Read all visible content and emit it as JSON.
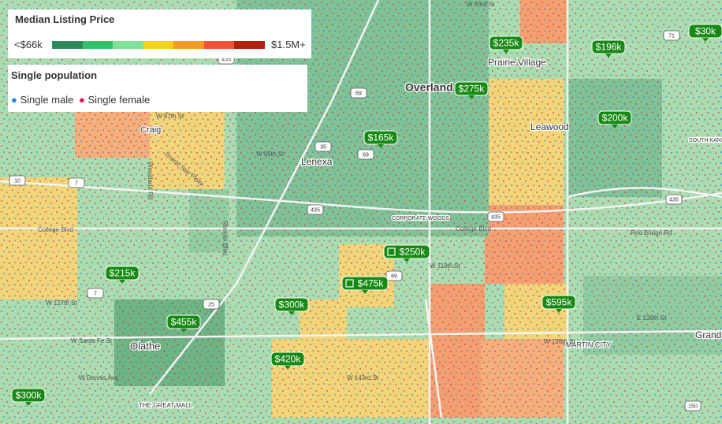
{
  "legend": {
    "title": "Median Listing Price",
    "min_label": "<$66k",
    "max_label": "$1.5M+"
  },
  "population_legend": {
    "title": "Single population",
    "items": [
      "Single male",
      "Single female"
    ]
  },
  "price_markers": [
    "$165k",
    "$235k",
    "$275k",
    "$196k",
    "$30k",
    "$200k",
    "$250k",
    "$475k",
    "$215k",
    "$300k",
    "$455k",
    "$420k",
    "$595k",
    "$300k"
  ],
  "places": [
    "Overland",
    "Prairie Village",
    "Leawood",
    "Lenexa",
    "Craig",
    "Olathe",
    "MARTIN CITY",
    "Grand",
    "SOUTH KANSAS CITY",
    "CORPORATE WOODS",
    "THE GREAT MALL"
  ],
  "streets": [
    "W 87th St",
    "W 95th St",
    "College Blvd",
    "College Blvd",
    "W 119th St",
    "W 127th St",
    "W Santa Fe St",
    "W Dennis Ave",
    "W 135th St",
    "W 143rd St",
    "E 129th St",
    "Renner Blvd",
    "Woodland Rd",
    "Prairie Star Pkwy",
    "W 63rd St",
    "Red Bridge Rd"
  ],
  "highway_shields": [
    "435",
    "435",
    "435",
    "435",
    "69",
    "69",
    "69",
    "35",
    "7",
    "7",
    "10",
    "25",
    "150",
    "71"
  ]
}
